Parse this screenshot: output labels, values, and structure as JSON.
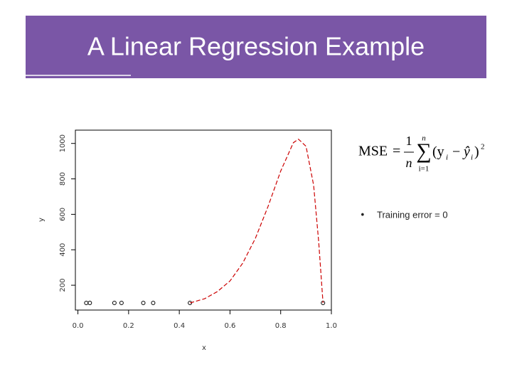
{
  "slide": {
    "title": "A Linear Regression Example",
    "bullet": "•",
    "bullet_text": "Training error = 0",
    "formula": {
      "lhs": "MSE",
      "eq": "=",
      "num": "1",
      "den": "n",
      "sum": "∑",
      "sup": "n",
      "sub": "i=1",
      "open": "(y",
      "i1": "i",
      "minus": "−",
      "yhat": "ŷ",
      "i2": "i",
      "close": ")",
      "pow": "2"
    }
  },
  "chart_data": {
    "type": "scatter",
    "x_label": "x",
    "y_label": "y",
    "xlim": [
      -0.01,
      1.0
    ],
    "ylim": [
      60,
      1075
    ],
    "xticks": [
      {
        "value": 0,
        "label": "0.0"
      },
      0.2,
      0.4,
      0.6,
      0.8,
      {
        "value": 1,
        "label": "1.0"
      }
    ],
    "yticks": [
      200,
      400,
      600,
      800,
      1000
    ],
    "series": [
      {
        "type": "scatter",
        "color": "#000000",
        "x": [
          0.033,
          0.047,
          0.144,
          0.172,
          0.258,
          0.297,
          0.442,
          0.967
        ],
        "values": [
          100,
          100,
          100,
          100,
          100,
          100,
          100,
          100
        ]
      },
      {
        "type": "line",
        "color": "#cc0000",
        "x": [
          0.442,
          0.5,
          0.55,
          0.6,
          0.65,
          0.7,
          0.75,
          0.8,
          0.85,
          0.87,
          0.9,
          0.93,
          0.95,
          0.967
        ],
        "values": [
          100,
          124,
          164,
          224,
          324,
          464,
          644,
          844,
          1004,
          1024,
          984,
          764,
          444,
          100
        ]
      }
    ]
  }
}
